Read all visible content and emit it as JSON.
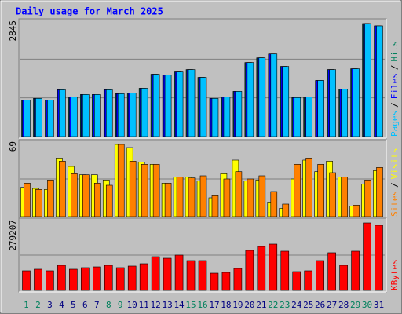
{
  "chart_data": {
    "type": "bar",
    "title": "Daily usage for March 2025",
    "categories": [
      "1",
      "2",
      "3",
      "4",
      "5",
      "6",
      "7",
      "8",
      "9",
      "10",
      "11",
      "12",
      "13",
      "14",
      "15",
      "16",
      "17",
      "18",
      "19",
      "20",
      "21",
      "22",
      "23",
      "24",
      "25",
      "26",
      "27",
      "28",
      "29",
      "30",
      "31"
    ],
    "category_colors": [
      "#00805c",
      "#00805c",
      "#000080",
      "#000080",
      "#000080",
      "#000080",
      "#000080",
      "#00805c",
      "#00805c",
      "#000080",
      "#000080",
      "#000080",
      "#000080",
      "#000080",
      "#00805c",
      "#00805c",
      "#000080",
      "#000080",
      "#000080",
      "#000080",
      "#000080",
      "#00805c",
      "#00805c",
      "#000080",
      "#000080",
      "#000080",
      "#000080",
      "#000080",
      "#00805c",
      "#00805c",
      "#000080"
    ],
    "separator": "/",
    "panels": [
      {
        "ylim": [
          0,
          2845
        ],
        "yticks": [
          2845
        ],
        "series": [
          {
            "name": "Hits",
            "color": "#00805c",
            "values": [
              922,
              961,
              922,
              1177,
              1001,
              1059,
              1059,
              1177,
              1079,
              1099,
              1216,
              1570,
              1550,
              1628,
              1687,
              1491,
              961,
              1001,
              1138,
              1864,
              1982,
              2080,
              1766,
              981,
              1001,
              1413,
              1687,
              1197,
              1707,
              2845,
              2786
            ]
          },
          {
            "name": "Files",
            "color": "#0000ff",
            "values": [
              922,
              961,
              922,
              1177,
              1001,
              1059,
              1059,
              1177,
              1079,
              1099,
              1216,
              1570,
              1550,
              1628,
              1687,
              1491,
              961,
              1001,
              1138,
              1864,
              1982,
              2080,
              1766,
              981,
              1001,
              1413,
              1687,
              1197,
              1707,
              2845,
              2786
            ]
          },
          {
            "name": "Pages",
            "color": "#00c0ff",
            "values": [
              922,
              961,
              922,
              1177,
              1001,
              1059,
              1059,
              1177,
              1079,
              1099,
              1216,
              1570,
              1550,
              1628,
              1687,
              1491,
              961,
              1001,
              1138,
              1864,
              1982,
              2080,
              1766,
              981,
              1001,
              1413,
              1687,
              1197,
              1707,
              2845,
              2786
            ]
          }
        ]
      },
      {
        "ylim": [
          0,
          69
        ],
        "yticks": [
          69
        ],
        "series": [
          {
            "name": "Visits",
            "color": "#ffff00",
            "values": [
              28,
              27,
              26,
              56,
              48,
              40,
              40,
              35,
              69,
              66,
              52,
              50,
              32,
              38,
              38,
              34,
              18,
              41,
              54,
              34,
              35,
              14,
              8,
              36,
              54,
              43,
              53,
              38,
              10,
              31,
              44
            ]
          },
          {
            "name": "Sites",
            "color": "#ff8000",
            "values": [
              32,
              26,
              35,
              53,
              41,
              40,
              32,
              30,
              69,
              53,
              50,
              50,
              32,
              38,
              37,
              39,
              20,
              36,
              43,
              36,
              39,
              24,
              12,
              50,
              56,
              50,
              42,
              38,
              11,
              35,
              47
            ]
          }
        ]
      },
      {
        "ylim": [
          0,
          279207
        ],
        "yticks": [
          279207
        ],
        "series": [
          {
            "name": "KBytes",
            "color": "#ff0000",
            "values": [
              81200,
              87700,
              81200,
              103900,
              87700,
              94200,
              97400,
              103900,
              94200,
              100700,
              110400,
              139600,
              133100,
              146100,
              123400,
              123400,
              71400,
              74700,
              90900,
              165600,
              181800,
              191600,
              162400,
              77900,
              81200,
              123400,
              155900,
              103900,
              162400,
              279207,
              269500
            ]
          }
        ]
      }
    ]
  }
}
